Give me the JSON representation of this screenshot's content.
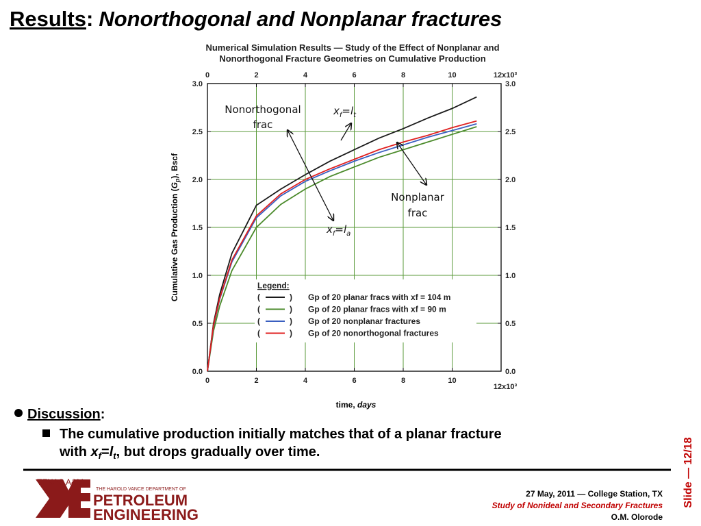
{
  "header": {
    "title": "Results",
    "colon": ":",
    "subtitle": "Nonorthogonal and Nonplanar fractures"
  },
  "discussion": {
    "heading": "Discussion",
    "colon": ":",
    "line1": "The cumulative production initially matches that of a planar fracture",
    "line2": [
      "with ",
      "x",
      "f",
      "=",
      "l",
      "t",
      ", but drops gradually over time."
    ]
  },
  "footer": {
    "date": "27 May, 2011 — College Station, TX",
    "talk": "Study of Nonideal and Secondary Fractures",
    "author": "O.M. Olorode",
    "slide": "Slide — 12/18"
  },
  "logo": {
    "school": "TEXAS A&M",
    "dept": "THE HAROLD VANCE DEPARTMENT OF",
    "line1": "PETROLEUM",
    "line2": "ENGINEERING"
  },
  "chart_data": {
    "type": "line",
    "title": [
      "Numerical Simulation Results — Study of the Effect of Nonplanar and",
      "Nonorthogonal Fracture Geometries on Cumulative Production"
    ],
    "xlabel": [
      "time, ",
      "days"
    ],
    "ylabel": [
      "Cumulative Gas Production (",
      "G",
      "p",
      "), Bscf"
    ],
    "legend_title": "Legend:",
    "annotations": [
      {
        "lines": [
          "Nonorthogonal",
          "frac"
        ]
      },
      {
        "parts": [
          "x",
          "f",
          "=",
          "l",
          "t"
        ]
      },
      {
        "lines": [
          "Nonplanar",
          "frac"
        ]
      },
      {
        "parts": [
          "x",
          "f",
          "=",
          "l",
          "a"
        ]
      }
    ],
    "x": [
      0,
      0.25,
      0.5,
      1,
      2,
      3,
      4,
      5,
      6,
      7,
      8,
      9,
      10,
      11
    ],
    "series": [
      {
        "name": "Gp of 20 planar fracs with xf = 104 m",
        "color": "#1a1a1a",
        "values": [
          0,
          0.5,
          0.8,
          1.23,
          1.73,
          1.9,
          2.05,
          2.19,
          2.31,
          2.43,
          2.53,
          2.64,
          2.74,
          2.86
        ]
      },
      {
        "name": "Gp of 20 planar fracs with xf = 90 m",
        "color": "#4a8a2a",
        "values": [
          0,
          0.42,
          0.68,
          1.05,
          1.5,
          1.74,
          1.9,
          2.03,
          2.13,
          2.23,
          2.31,
          2.39,
          2.47,
          2.55
        ]
      },
      {
        "name": "Gp of 20 nonplanar fractures",
        "color": "#3a5fc0",
        "values": [
          0,
          0.47,
          0.75,
          1.14,
          1.6,
          1.83,
          1.98,
          2.09,
          2.19,
          2.28,
          2.36,
          2.44,
          2.51,
          2.58
        ]
      },
      {
        "name": "Gp of 20 nonorthogonal fractures",
        "color": "#e02020",
        "values": [
          0,
          0.48,
          0.76,
          1.16,
          1.62,
          1.85,
          2.0,
          2.11,
          2.21,
          2.31,
          2.39,
          2.46,
          2.54,
          2.61
        ]
      }
    ],
    "xlim": [
      0,
      12
    ],
    "xticks": [
      0,
      2,
      4,
      6,
      8,
      10,
      {
        "value": 12,
        "label": "12x10³"
      }
    ],
    "ylim": [
      0,
      3
    ],
    "yticks": [
      {
        "value": 0,
        "label": "0.0"
      },
      {
        "value": 0.5,
        "label": "0.5"
      },
      {
        "value": 1,
        "label": "1.0"
      },
      {
        "value": 1.5,
        "label": "1.5"
      },
      {
        "value": 2,
        "label": "2.0"
      },
      {
        "value": 2.5,
        "label": "2.5"
      },
      {
        "value": 3,
        "label": "3.0"
      }
    ],
    "grid": true,
    "grid_color": "#5a9a3a"
  }
}
